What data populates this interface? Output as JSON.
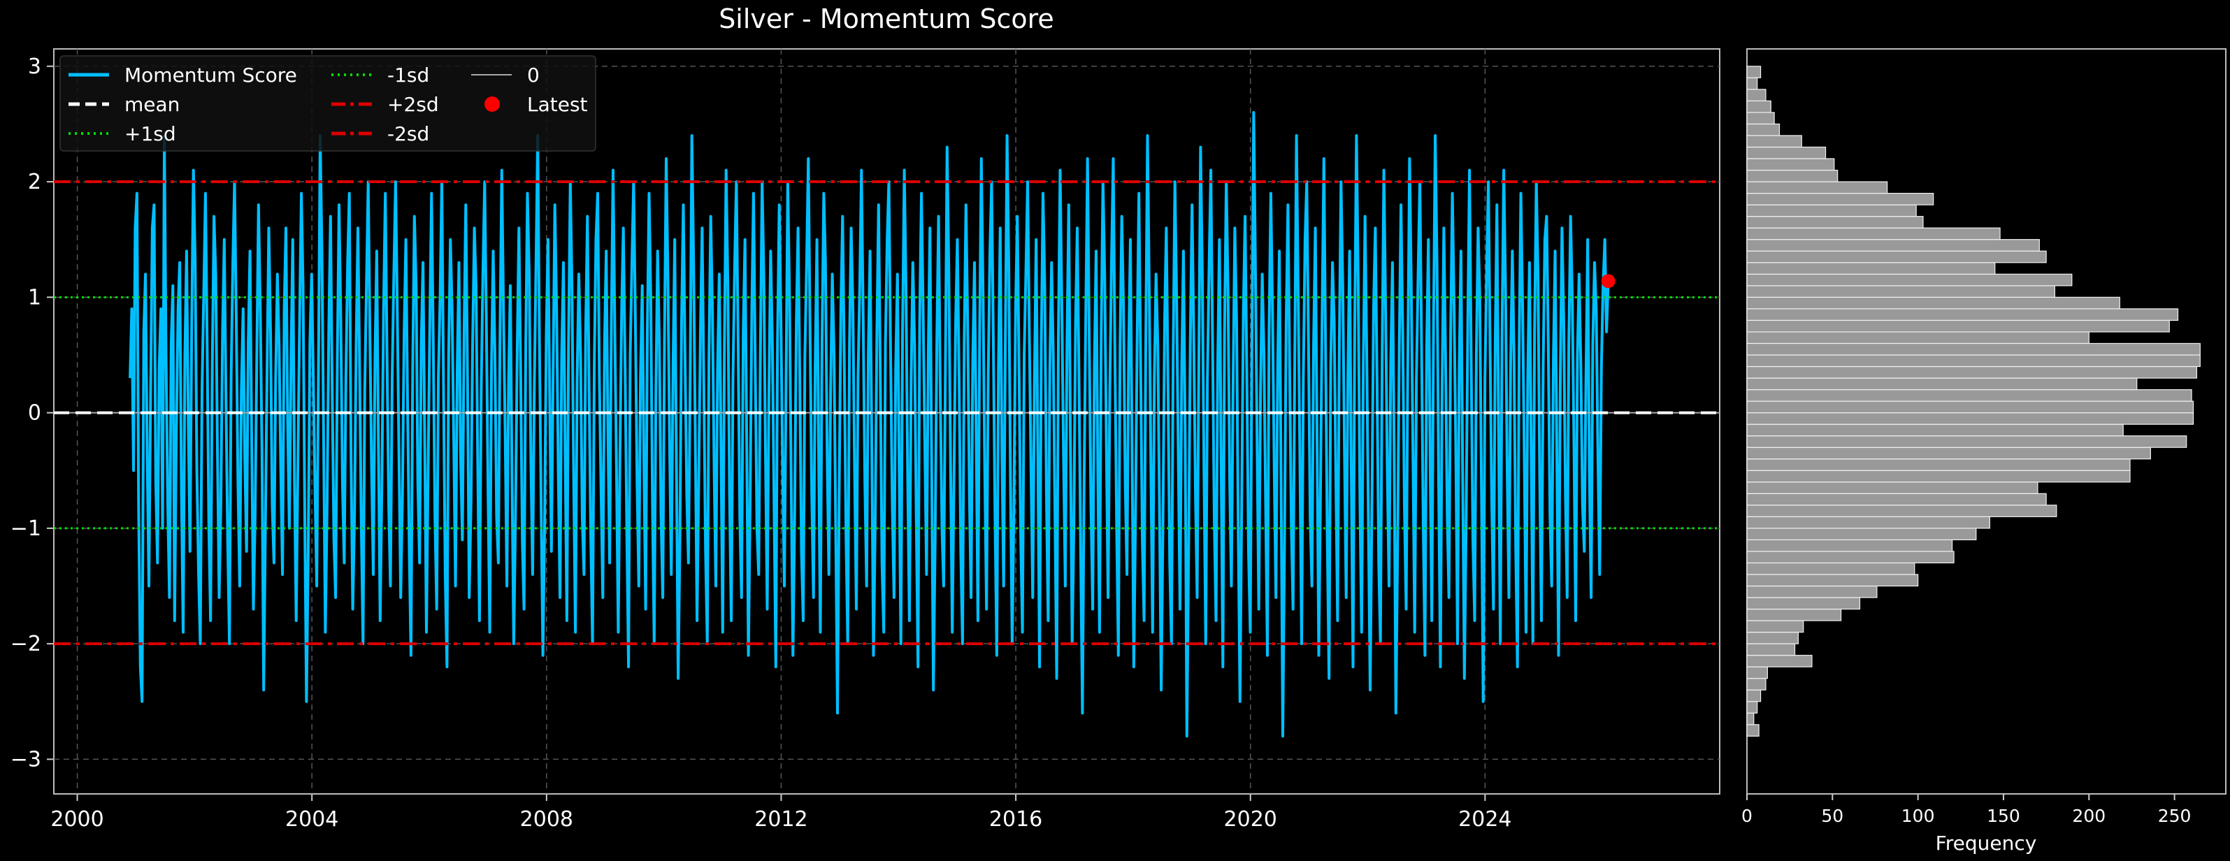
{
  "chart_data": [
    {
      "type": "line",
      "title": "Silver - Momentum Score",
      "xlabel": "",
      "ylabel": "",
      "xlim": [
        1999.6,
        2028.0
      ],
      "ylim": [
        -3.3,
        3.15
      ],
      "grid": true,
      "x_ticks": [
        2000,
        2004,
        2008,
        2012,
        2016,
        2020,
        2024
      ],
      "y_ticks": [
        -3,
        -2,
        -1,
        0,
        1,
        2,
        3
      ],
      "y_tick_labels": [
        "−3",
        "−2",
        "−1",
        "0",
        "1",
        "2",
        "3"
      ],
      "legend_position": "top-left",
      "legend": [
        {
          "label": "Momentum Score",
          "color": "#00bfff",
          "style": "solid"
        },
        {
          "label": "mean",
          "color": "#ffffff",
          "style": "dashed"
        },
        {
          "label": "+1sd",
          "color": "#00dd00",
          "style": "dotted"
        },
        {
          "label": "-1sd",
          "color": "#00dd00",
          "style": "dotted"
        },
        {
          "label": "+2sd",
          "color": "#dd0000",
          "style": "dashdot"
        },
        {
          "label": "-2sd",
          "color": "#dd0000",
          "style": "dashdot"
        },
        {
          "label": "0",
          "color": "#aaaaaa",
          "style": "thin"
        },
        {
          "label": "Latest",
          "color": "#ff0000",
          "style": "marker"
        }
      ],
      "reference_lines": {
        "mean": 0.0,
        "plus_1sd": 1.0,
        "minus_1sd": -1.0,
        "plus_2sd": 2.0,
        "minus_2sd": -2.0,
        "zero": 0.0
      },
      "series": [
        {
          "name": "Momentum Score",
          "color": "#00bfff",
          "x_start": 2000.9,
          "x_end": 2026.1,
          "values": [
            0.3,
            0.9,
            -0.5,
            1.6,
            1.9,
            -0.8,
            -2.2,
            -2.5,
            0.7,
            1.2,
            -0.4,
            -1.5,
            0.2,
            1.6,
            1.8,
            -0.6,
            -1.3,
            0.4,
            0.9,
            -1.0,
            2.4,
            0.5,
            -0.8,
            -1.6,
            0.6,
            1.1,
            -1.8,
            -0.2,
            0.9,
            1.3,
            -0.7,
            -1.9,
            0.5,
            1.4,
            -0.1,
            -1.2,
            0.8,
            2.1,
            1.3,
            -0.5,
            -1.4,
            -2.0,
            0.2,
            1.0,
            1.9,
            0.6,
            -1.0,
            -1.8,
            0.4,
            1.7,
            1.2,
            -0.3,
            -1.6,
            -0.8,
            0.7,
            1.5,
            0.1,
            -1.1,
            -2.0,
            0.3,
            1.3,
            2.0,
            0.8,
            -0.6,
            -1.5,
            0.2,
            0.9,
            -0.4,
            -1.2,
            0.6,
            1.4,
            -0.2,
            -1.7,
            -0.9,
            0.5,
            1.8,
            0.9,
            -0.3,
            -2.4,
            -1.0,
            0.4,
            1.6,
            0.7,
            -0.8,
            -1.3,
            0.3,
            1.2,
            0.6,
            -0.5,
            -1.4,
            0.9,
            1.6,
            -0.1,
            -1.0,
            0.5,
            1.5,
            -0.6,
            -1.8,
            -0.4,
            0.8,
            1.9,
            1.1,
            -0.9,
            -2.5,
            -1.2,
            0.6,
            1.2,
            0.3,
            -0.7,
            -1.5,
            0.4,
            2.4,
            1.4,
            -0.2,
            -1.9,
            -0.8,
            0.7,
            1.7,
            0.2,
            -1.1,
            -1.6,
            0.5,
            1.8,
            0.8,
            -0.6,
            -1.3,
            0.3,
            1.3,
            1.9,
            -0.4,
            -1.7,
            -0.9,
            0.6,
            1.6,
            0.4,
            -1.0,
            -2.0,
            0.2,
            1.1,
            2.0,
            0.7,
            -0.5,
            -1.4,
            0.5,
            1.4,
            -0.3,
            -1.8,
            -0.6,
            0.9,
            1.9,
            0.5,
            -0.8,
            -1.5,
            0.3,
            1.2,
            2.0,
            0.9,
            -0.4,
            -1.6,
            -0.7,
            0.7,
            1.5,
            0.1,
            -1.2,
            -2.1,
            0.4,
            1.7,
            1.1,
            -0.6,
            -1.3,
            0.6,
            1.3,
            -0.2,
            -1.9,
            -0.5,
            0.8,
            1.9,
            0.6,
            -0.9,
            -1.7,
            0.3,
            1.0,
            2.0,
            0.2,
            -1.4,
            -2.2,
            0.5,
            1.5,
            0.9,
            -0.3,
            -1.5,
            0.4,
            1.3,
            -0.4,
            -1.1,
            0.7,
            1.8,
            0.3,
            -1.6,
            -0.8,
            0.6,
            1.6,
            1.1,
            -0.5,
            -1.8,
            0.2,
            1.2,
            2.0,
            0.8,
            -0.7,
            -1.9,
            0.4,
            1.4,
            0.5,
            -0.9,
            -1.3,
            0.7,
            2.1,
            0.9,
            -0.2,
            -1.5,
            0.3,
            1.1,
            -0.6,
            -2.0,
            -0.9,
            0.5,
            1.6,
            0.4,
            -1.1,
            -1.7,
            0.6,
            1.9,
            1.2,
            -0.4,
            -1.4,
            0.2,
            1.3,
            2.4,
            0.6,
            -0.8,
            -2.1,
            -1.0,
            0.7,
            1.5,
            0.1,
            -1.2,
            0.4,
            1.8,
            0.9,
            -0.5,
            -1.6,
            0.5,
            1.3,
            -0.3,
            -1.8,
            0.6,
            2.0,
            1.1,
            -0.6,
            -1.9,
            0.3,
            1.2,
            0.5,
            -0.9,
            -1.4,
            0.7,
            1.7,
            0.2,
            -1.1,
            -2.0,
            0.4,
            1.5,
            1.9,
            0.3,
            -0.7,
            -1.6,
            0.6,
            1.4,
            -0.2,
            -1.3,
            0.8,
            2.1,
            0.7,
            -0.5,
            -1.9,
            -0.4,
            0.9,
            1.6,
            0.4,
            -1.0,
            -2.2,
            0.5,
            1.3,
            2.0,
            0.8,
            -0.6,
            -1.5,
            0.3,
            1.1,
            -0.4,
            -1.7,
            0.7,
            1.9,
            1.0,
            -0.8,
            -2.0,
            0.2,
            1.4,
            0.6,
            -0.9,
            -1.6,
            0.6,
            2.2,
            1.2,
            -0.3,
            -1.4,
            0.4,
            1.5,
            -0.5,
            -2.3,
            -1.1,
            0.8,
            1.8,
            0.5,
            -0.7,
            -1.3,
            0.3,
            2.4,
            1.3,
            -0.2,
            -1.8,
            -0.6,
            0.7,
            1.6,
            0.2,
            -1.2,
            -2.0,
            0.5,
            1.7,
            0.9,
            -0.5,
            -1.5,
            0.4,
            1.2,
            -0.3,
            -1.9,
            0.6,
            2.1,
            1.1,
            -0.7,
            -1.8,
            0.3,
            1.3,
            2.0,
            0.6,
            -0.9,
            -1.6,
            0.7,
            1.5,
            -0.2,
            -2.1,
            -0.8,
            0.9,
            1.9,
            0.4,
            -1.0,
            -1.4,
            0.5,
            2.0,
            1.2,
            -0.4,
            -1.7,
            0.2,
            1.4,
            0.6,
            -0.8,
            -2.2,
            0.6,
            1.8,
            0.8,
            -0.5,
            -1.5,
            0.3,
            2.0,
            1.0,
            -0.6,
            -2.1,
            -0.9,
            0.8,
            1.6,
            0.3,
            -1.2,
            -1.8,
            0.5,
            1.3,
            2.2,
            0.7,
            -0.7,
            -1.6,
            0.4,
            1.5,
            -0.3,
            -1.9,
            0.6,
            1.9,
            1.3,
            -0.4,
            -1.4,
            0.2,
            1.2,
            0.5,
            -1.0,
            -2.6,
            -0.7,
            0.9,
            1.7,
            0.4,
            -1.1,
            -2.0,
            0.6,
            1.6,
            0.9,
            -0.5,
            -1.7,
            0.3,
            1.1,
            2.1,
            0.8,
            -0.6,
            -1.5,
            0.5,
            1.4,
            -0.2,
            -2.1,
            -1.0,
            0.7,
            1.8,
            0.3,
            -1.3,
            -1.9,
            0.6,
            1.5,
            2.0,
            0.5,
            -0.8,
            -1.6,
            0.4,
            1.2,
            -0.4,
            -2.0,
            0.7,
            2.1,
            1.1,
            -0.6,
            -1.8,
            0.3,
            1.3,
            0.6,
            -0.9,
            -2.2,
            0.8,
            1.9,
            0.9,
            -0.3,
            -1.4,
            0.5,
            1.6,
            -0.5,
            -2.4,
            -1.1,
            0.6,
            1.7,
            0.2,
            -1.0,
            -1.5,
            0.4,
            2.3,
            1.2,
            -0.4,
            -1.9,
            -0.6,
            0.8,
            1.5,
            0.3,
            -1.2,
            -2.0,
            0.6,
            1.8,
            0.8,
            -0.7,
            -1.6,
            0.5,
            1.3,
            -0.2,
            -1.8,
            0.7,
            2.2,
            1.0,
            -0.5,
            -1.7,
            0.3,
            1.4,
            2.0,
            0.6,
            -0.9,
            -2.1,
            0.4,
            1.6,
            -0.3,
            -1.5,
            0.6,
            2.4,
            1.3,
            -0.6,
            -2.0,
            -0.8,
            0.9,
            1.7,
            0.4,
            -1.1,
            -1.9,
            0.5,
            1.2,
            2.0,
            0.7,
            -0.5,
            -1.6,
            0.3,
            1.5,
            -0.4,
            -2.2,
            0.6,
            1.9,
            1.1,
            -0.7,
            -1.8,
            0.4,
            1.3,
            0.5,
            -0.9,
            -2.3,
            0.7,
            2.1,
            0.9,
            -0.4,
            -1.5,
            0.6,
            1.8,
            -0.2,
            -2.0,
            -1.0,
            0.8,
            1.6,
            0.3,
            -1.2,
            -2.6,
            -0.6,
            0.9,
            2.2,
            0.6,
            -0.8,
            -1.7,
            0.4,
            1.4,
            -0.5,
            -1.9,
            0.7,
            2.0,
            1.2,
            -0.3,
            -1.6,
            0.2,
            1.3,
            2.2,
            0.5,
            -1.0,
            -2.1,
            0.6,
            1.7,
            0.9,
            -0.6,
            -1.4,
            0.5,
            1.5,
            -0.3,
            -2.2,
            -0.9,
            0.7,
            1.9,
            0.4,
            -1.1,
            -1.8,
            0.6,
            2.4,
            1.1,
            -0.5,
            -1.9,
            0.3,
            1.2,
            0.6,
            -0.8,
            -2.4,
            -1.0,
            0.8,
            1.6,
            0.2,
            -1.3,
            -2.0,
            0.5,
            2.0,
            1.0,
            -0.4,
            -1.7,
            0.4,
            1.4,
            -0.2,
            -2.8,
            -1.2,
            0.6,
            1.8,
            0.7,
            -0.7,
            -1.6,
            0.5,
            2.3,
            1.2,
            -0.5,
            -2.0,
            0.3,
            1.3,
            2.1,
            0.6,
            -0.9,
            -1.8,
            0.4,
            1.5,
            -0.4,
            -2.2,
            0.7,
            2.0,
            1.1,
            -0.6,
            -1.5,
            0.3,
            1.6,
            0.8,
            -1.0,
            -2.5,
            -0.8,
            0.9,
            1.7,
            0.3,
            -1.2,
            -1.9,
            0.6,
            2.6,
            1.3,
            -0.3,
            -1.7,
            0.2,
            1.2,
            0.5,
            -0.8,
            -2.1,
            0.7,
            1.9,
            0.9,
            -0.5,
            -1.6,
            0.4,
            1.4,
            -0.6,
            -2.8,
            -1.1,
            0.8,
            1.8,
            0.4,
            -1.0,
            -1.7,
            0.5,
            2.4,
            1.0,
            -0.4,
            -2.0,
            0.3,
            1.5,
            2.0,
            0.6,
            -0.9,
            -1.5,
            0.6,
            1.6,
            -0.2,
            -2.1,
            -0.7,
            0.9,
            2.2,
            0.5,
            -1.1,
            -2.3,
            0.4,
            1.3,
            0.8,
            -0.6,
            -1.8,
            0.6,
            2.0,
            1.1,
            -0.3,
            -1.6,
            0.3,
            1.4,
            -0.5,
            -2.2,
            0.7,
            2.4,
            1.2,
            -0.7,
            -1.9,
            0.4,
            1.7,
            0.5,
            -1.0,
            -2.4,
            -0.8,
            0.9,
            1.6,
            0.3,
            -1.3,
            -2.0,
            0.5,
            2.1,
            0.9,
            -0.5,
            -1.5,
            0.4,
            1.3,
            -0.3,
            -2.6,
            -1.2,
            0.6,
            1.8,
            0.7,
            -0.8,
            -1.7,
            0.5,
            2.2,
            1.1,
            -0.4,
            -1.9,
            0.3,
            1.2,
            2.0,
            0.6,
            -1.0,
            -2.1,
            0.6,
            1.5,
            -0.4,
            -1.8,
            0.8,
            2.4,
            1.3,
            -0.6,
            -2.2,
            0.2,
            1.6,
            0.5,
            -0.9,
            -1.6,
            0.7,
            1.9,
            0.9,
            -0.3,
            -2.0,
            0.4,
            1.4,
            -0.5,
            -2.3,
            -1.0,
            0.8,
            2.1,
            0.4,
            -1.1,
            -1.8,
            0.5,
            1.6,
            1.0,
            -0.7,
            -2.5,
            0.3,
            1.2,
            2.0,
            0.6,
            -0.8,
            -1.7,
            0.6,
            1.8,
            -0.2,
            -2.0,
            0.7,
            2.1,
            1.1,
            -0.5,
            -1.6,
            0.4,
            1.4,
            0.5,
            -1.2,
            -2.2,
            0.6,
            1.9,
            0.9,
            -0.4,
            -1.9,
            0.3,
            1.3,
            -0.3,
            -2.0,
            0.7,
            2.0,
            1.2,
            -0.6,
            -1.8,
            0.4,
            1.5,
            1.7,
            0.6,
            -0.9,
            -1.5,
            0.5,
            1.4,
            -0.4,
            -2.1,
            0.3,
            1.6,
            0.8,
            -0.7,
            -1.6,
            0.6,
            1.7,
            1.0,
            -0.3,
            -1.8,
            0.5,
            1.2,
            0.4,
            -0.8,
            -1.2,
            0.3,
            1.5,
            -0.5,
            -1.6,
            0.6,
            1.3,
            0.9,
            -0.4,
            -1.4,
            0.4,
            1.1,
            1.5,
            0.7,
            1.14
          ]
        }
      ],
      "latest_point": {
        "x": 2026.1,
        "y": 1.14,
        "label": "Latest"
      }
    },
    {
      "type": "bar",
      "orientation": "horizontal",
      "xlabel": "Frequency",
      "ylabel": "",
      "xlim": [
        0,
        280
      ],
      "ylim": [
        -3.3,
        3.15
      ],
      "x_ticks": [
        0,
        50,
        100,
        150,
        200,
        250
      ],
      "bar_color": "#999999",
      "bin_start": -2.8,
      "bin_width": 0.1,
      "values": [
        7,
        4,
        6,
        8,
        11,
        12,
        38,
        28,
        30,
        33,
        55,
        66,
        76,
        100,
        98,
        121,
        120,
        134,
        142,
        181,
        175,
        170,
        224,
        224,
        236,
        257,
        220,
        261,
        261,
        260,
        228,
        263,
        265,
        265,
        200,
        247,
        252,
        218,
        180,
        190,
        145,
        175,
        171,
        148,
        103,
        99,
        109,
        82,
        53,
        51,
        46,
        32,
        19,
        16,
        14,
        11,
        6,
        8
      ]
    }
  ]
}
